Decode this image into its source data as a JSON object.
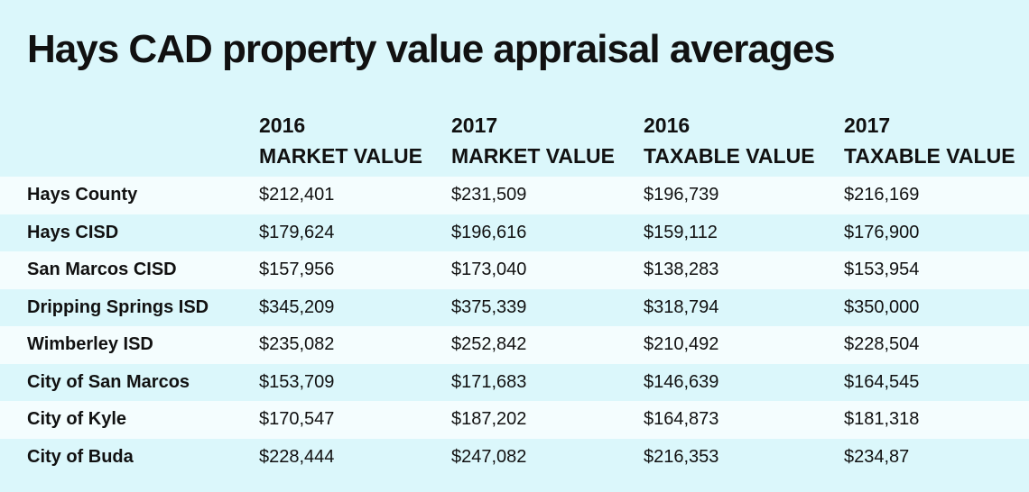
{
  "chart_data": {
    "type": "table",
    "title": "Hays CAD property value appraisal averages",
    "columns": [
      {
        "year": "2016",
        "label": "MARKET VALUE"
      },
      {
        "year": "2017",
        "label": "MARKET VALUE"
      },
      {
        "year": "2016",
        "label": "TAXABLE VALUE"
      },
      {
        "year": "2017",
        "label": "TAXABLE VALUE"
      }
    ],
    "rows": [
      {
        "name": "Hays County",
        "values": [
          "$212,401",
          "$231,509",
          "$196,739",
          "$216,169"
        ]
      },
      {
        "name": "Hays CISD",
        "values": [
          "$179,624",
          "$196,616",
          "$159,112",
          "$176,900"
        ]
      },
      {
        "name": "San Marcos CISD",
        "values": [
          "$157,956",
          "$173,040",
          "$138,283",
          "$153,954"
        ]
      },
      {
        "name": "Dripping Springs ISD",
        "values": [
          "$345,209",
          "$375,339",
          "$318,794",
          "$350,000"
        ]
      },
      {
        "name": "Wimberley ISD",
        "values": [
          "$235,082",
          "$252,842",
          "$210,492",
          "$228,504"
        ]
      },
      {
        "name": "City of San Marcos",
        "values": [
          "$153,709",
          "$171,683",
          "$146,639",
          "$164,545"
        ]
      },
      {
        "name": "City of Kyle",
        "values": [
          "$170,547",
          "$187,202",
          "$164,873",
          "$181,318"
        ]
      },
      {
        "name": "City of Buda",
        "values": [
          "$228,444",
          "$247,082",
          "$216,353",
          "$234,87"
        ]
      }
    ]
  },
  "colors": {
    "background": "#dbf7fb",
    "band": "#f4fdfe",
    "text": "#111111"
  }
}
